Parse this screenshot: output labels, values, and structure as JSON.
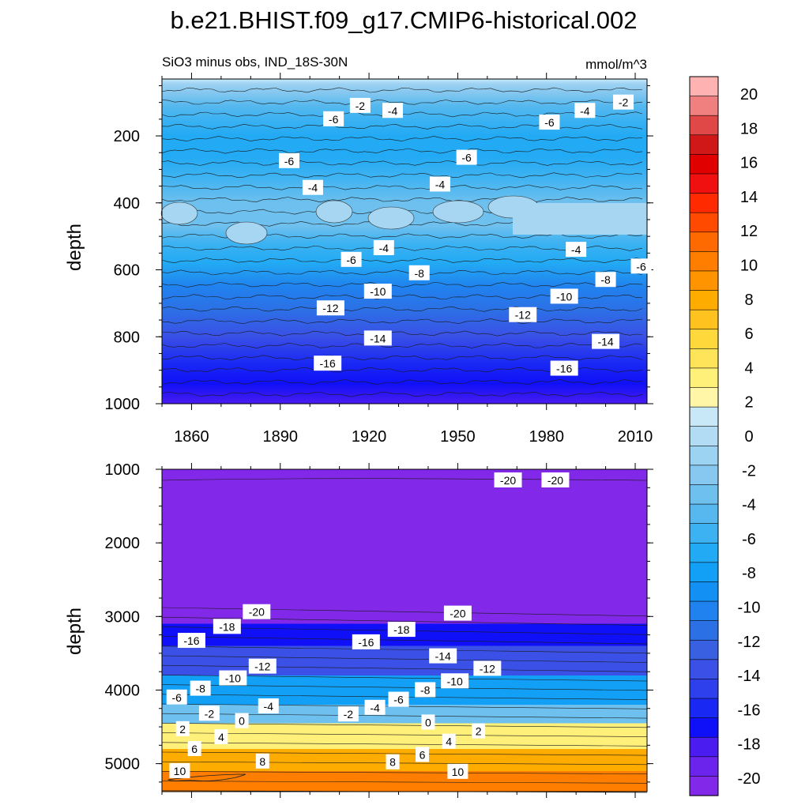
{
  "title": "b.e21.BHIST.f09_g17.CMIP6-historical.002",
  "subtitle_left": "SiO3 minus obs, IND_18S-30N",
  "subtitle_right": "mmol/m^3",
  "chart_data": [
    {
      "type": "heatmap",
      "panel": "upper",
      "xlabel": "",
      "ylabel": "depth",
      "xlim": [
        1850,
        2014
      ],
      "ylim": [
        1000,
        30
      ],
      "x_ticks": [
        1860,
        1890,
        1920,
        1950,
        1980,
        2010
      ],
      "y_ticks": [
        200,
        400,
        600,
        800,
        1000
      ],
      "y_reversed": true,
      "depth_profile": [
        {
          "depth": 30,
          "value": 1
        },
        {
          "depth": 45,
          "value": -1
        },
        {
          "depth": 70,
          "value": -2.5
        },
        {
          "depth": 110,
          "value": -4
        },
        {
          "depth": 150,
          "value": -5.5
        },
        {
          "depth": 200,
          "value": -7
        },
        {
          "depth": 260,
          "value": -6.5
        },
        {
          "depth": 320,
          "value": -5
        },
        {
          "depth": 400,
          "value": -3.5
        },
        {
          "depth": 470,
          "value": -3.5
        },
        {
          "depth": 520,
          "value": -5
        },
        {
          "depth": 580,
          "value": -7
        },
        {
          "depth": 650,
          "value": -9.5
        },
        {
          "depth": 720,
          "value": -11.5
        },
        {
          "depth": 800,
          "value": -13.5
        },
        {
          "depth": 880,
          "value": -15.5
        },
        {
          "depth": 940,
          "value": -17
        },
        {
          "depth": 1000,
          "value": -18
        }
      ],
      "contour_labels": [
        {
          "text": "-2",
          "x": 1917,
          "depth": 110
        },
        {
          "text": "-4",
          "x": 1928,
          "depth": 125
        },
        {
          "text": "-6",
          "x": 1908,
          "depth": 150
        },
        {
          "text": "-6",
          "x": 1893,
          "depth": 275
        },
        {
          "text": "-6",
          "x": 1953,
          "depth": 265
        },
        {
          "text": "-4",
          "x": 1901,
          "depth": 355
        },
        {
          "text": "-4",
          "x": 1944,
          "depth": 345
        },
        {
          "text": "-2",
          "x": 2006,
          "depth": 100
        },
        {
          "text": "-4",
          "x": 1993,
          "depth": 125
        },
        {
          "text": "-6",
          "x": 1981,
          "depth": 160
        },
        {
          "text": "-4",
          "x": 1925,
          "depth": 535
        },
        {
          "text": "-6",
          "x": 1914,
          "depth": 570
        },
        {
          "text": "-4",
          "x": 1990,
          "depth": 540
        },
        {
          "text": "-8",
          "x": 1937,
          "depth": 610
        },
        {
          "text": "-10",
          "x": 1923,
          "depth": 665
        },
        {
          "text": "-12",
          "x": 1907,
          "depth": 715
        },
        {
          "text": "-14",
          "x": 1923,
          "depth": 805
        },
        {
          "text": "-16",
          "x": 1906,
          "depth": 880
        },
        {
          "text": "-6",
          "x": 2012,
          "depth": 590
        },
        {
          "text": "-8",
          "x": 2000,
          "depth": 630
        },
        {
          "text": "-10",
          "x": 1986,
          "depth": 680
        },
        {
          "text": "-12",
          "x": 1972,
          "depth": 735
        },
        {
          "text": "-14",
          "x": 2000,
          "depth": 815
        },
        {
          "text": "-16",
          "x": 1986,
          "depth": 895
        }
      ]
    },
    {
      "type": "heatmap",
      "panel": "lower",
      "xlabel": "",
      "ylabel": "depth",
      "xlim": [
        1850,
        2014
      ],
      "ylim": [
        5380,
        1000
      ],
      "x_ticks": [
        1860,
        1890,
        1920,
        1950,
        1980,
        2010
      ],
      "y_ticks": [
        1000,
        2000,
        3000,
        4000,
        5000
      ],
      "y_reversed": true,
      "contour_labels": [
        {
          "text": "-20",
          "x": 1967,
          "depth": 1150
        },
        {
          "text": "-20",
          "x": 1983,
          "depth": 1150
        },
        {
          "text": "-20",
          "x": 1882,
          "depth": 2940
        },
        {
          "text": "-20",
          "x": 1950,
          "depth": 2960
        },
        {
          "text": "-18",
          "x": 1872,
          "depth": 3140
        },
        {
          "text": "-18",
          "x": 1931,
          "depth": 3180
        },
        {
          "text": "-16",
          "x": 1860,
          "depth": 3330
        },
        {
          "text": "-16",
          "x": 1919,
          "depth": 3350
        },
        {
          "text": "-14",
          "x": 1945,
          "depth": 3540
        },
        {
          "text": "-12",
          "x": 1884,
          "depth": 3680
        },
        {
          "text": "-12",
          "x": 1960,
          "depth": 3710
        },
        {
          "text": "-10",
          "x": 1874,
          "depth": 3840
        },
        {
          "text": "-10",
          "x": 1949,
          "depth": 3880
        },
        {
          "text": "-8",
          "x": 1863,
          "depth": 3980
        },
        {
          "text": "-8",
          "x": 1939,
          "depth": 4000
        },
        {
          "text": "-6",
          "x": 1855,
          "depth": 4100
        },
        {
          "text": "-6",
          "x": 1930,
          "depth": 4130
        },
        {
          "text": "-4",
          "x": 1886,
          "depth": 4220
        },
        {
          "text": "-4",
          "x": 1922,
          "depth": 4240
        },
        {
          "text": "-2",
          "x": 1866,
          "depth": 4320
        },
        {
          "text": "-2",
          "x": 1913,
          "depth": 4330
        },
        {
          "text": "0",
          "x": 1877,
          "depth": 4420
        },
        {
          "text": "0",
          "x": 1940,
          "depth": 4440
        },
        {
          "text": "2",
          "x": 1857,
          "depth": 4530
        },
        {
          "text": "2",
          "x": 1957,
          "depth": 4560
        },
        {
          "text": "4",
          "x": 1870,
          "depth": 4640
        },
        {
          "text": "4",
          "x": 1947,
          "depth": 4700
        },
        {
          "text": "6",
          "x": 1861,
          "depth": 4800
        },
        {
          "text": "6",
          "x": 1938,
          "depth": 4880
        },
        {
          "text": "8",
          "x": 1884,
          "depth": 4970
        },
        {
          "text": "8",
          "x": 1928,
          "depth": 4980
        },
        {
          "text": "10",
          "x": 1856,
          "depth": 5100
        },
        {
          "text": "10",
          "x": 1950,
          "depth": 5110
        }
      ],
      "bands": [
        {
          "depth_top": 1000,
          "depth_bottom": 1100,
          "value": -21
        },
        {
          "depth_top": 1100,
          "depth_bottom": 2900,
          "value": -20.5
        },
        {
          "depth_top": 2900,
          "depth_bottom": 3100,
          "value": -19.5
        },
        {
          "depth_top": 3100,
          "depth_bottom": 3400,
          "value": -17
        },
        {
          "depth_top": 3400,
          "depth_bottom": 3800,
          "value": -13
        },
        {
          "depth_top": 3800,
          "depth_bottom": 4200,
          "value": -8
        },
        {
          "depth_top": 4200,
          "depth_bottom": 4450,
          "value": -3
        },
        {
          "depth_top": 4450,
          "depth_bottom": 4800,
          "value": 3
        },
        {
          "depth_top": 4800,
          "depth_bottom": 5100,
          "value": 8
        },
        {
          "depth_top": 5100,
          "depth_bottom": 5380,
          "value": 10.5
        }
      ]
    }
  ],
  "colorbar": {
    "labels": [
      "20",
      "18",
      "16",
      "14",
      "12",
      "10",
      "8",
      "6",
      "4",
      "2",
      "0",
      "-2",
      "-4",
      "-6",
      "-8",
      "-10",
      "-12",
      "-14",
      "-16",
      "-18",
      "-20"
    ],
    "colors": [
      "#ffb2b2",
      "#f08080",
      "#e04848",
      "#d01818",
      "#e00000",
      "#f01010",
      "#ff2a00",
      "#ff4a00",
      "#ff6a00",
      "#ff7e00",
      "#ff9400",
      "#ffac00",
      "#ffc21e",
      "#ffd83c",
      "#ffe45a",
      "#fff07a",
      "#fff6a8",
      "#c8e8f8",
      "#b2dcf4",
      "#9cd2f2",
      "#86c8f0",
      "#6ec0ee",
      "#56b8ee",
      "#3cb2f2",
      "#22aaf4",
      "#12a0f6",
      "#1290f4",
      "#2082ee",
      "#2c70e6",
      "#3860e0",
      "#3a50e6",
      "#2e40ec",
      "#1a28f4",
      "#1010f8",
      "#4a1cf0",
      "#6a24ec",
      "#8228e8"
    ]
  }
}
